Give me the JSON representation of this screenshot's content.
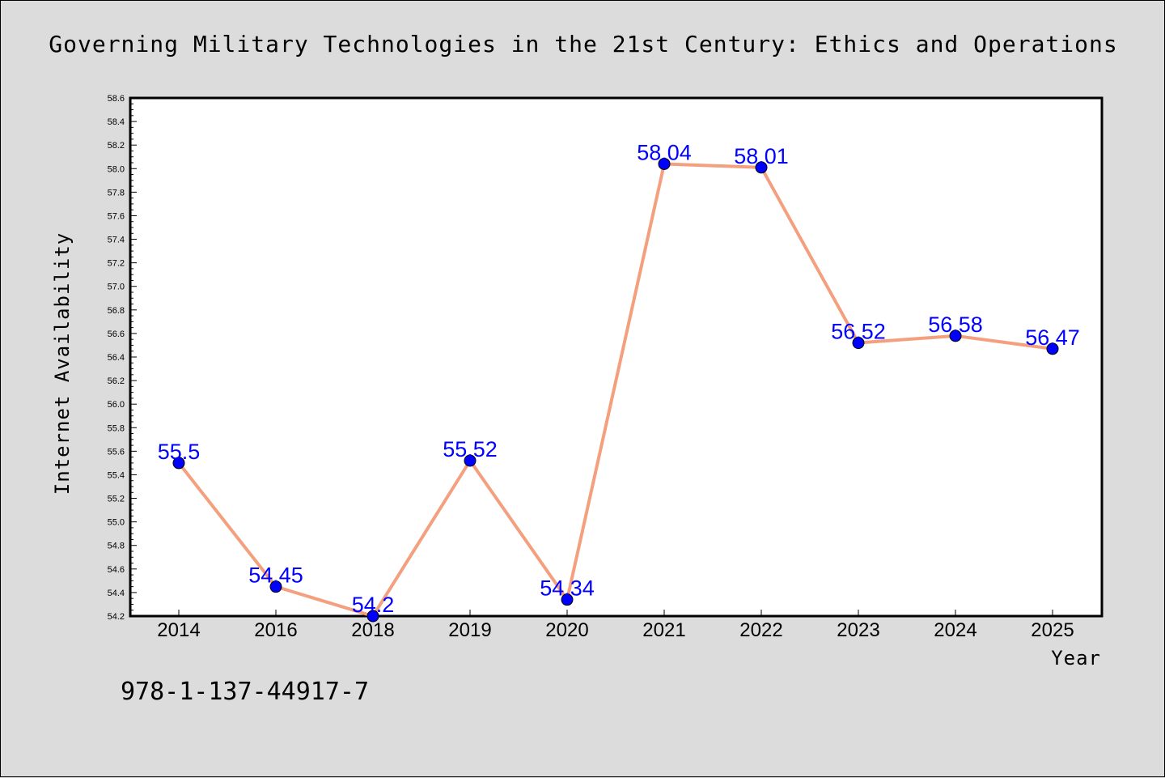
{
  "chart_data": {
    "type": "line",
    "title": "Governing Military Technologies in the 21st Century: Ethics and Operations",
    "xlabel": "Year",
    "ylabel": "Internet Availability",
    "categories": [
      "2014",
      "2016",
      "2018",
      "2019",
      "2020",
      "2021",
      "2022",
      "2023",
      "2024",
      "2025"
    ],
    "values": [
      55.5,
      54.45,
      54.2,
      55.52,
      54.34,
      58.04,
      58.01,
      56.52,
      56.58,
      56.47
    ],
    "data_labels": [
      "55.5",
      "54.45",
      "54.2",
      "55.52",
      "54.34",
      "58.04",
      "58.01",
      "56.52",
      "56.58",
      "56.47"
    ],
    "ylim": [
      54.2,
      58.6
    ],
    "yticks": [
      "54.2",
      "54.4",
      "54.6",
      "54.8",
      "55.0",
      "55.2",
      "55.4",
      "55.6",
      "55.8",
      "56.0",
      "56.2",
      "56.4",
      "56.6",
      "56.8",
      "57.0",
      "57.2",
      "57.4",
      "57.6",
      "57.8",
      "58.0",
      "58.2",
      "58.4",
      "58.6"
    ],
    "grid": false,
    "line_color": "#f4a07e",
    "marker_color": "#0000ff",
    "label_color": "#0000ff",
    "background": "#dcdcdc",
    "plot_background": "#ffffff"
  },
  "footer": {
    "code": "978-1-137-44917-7"
  }
}
